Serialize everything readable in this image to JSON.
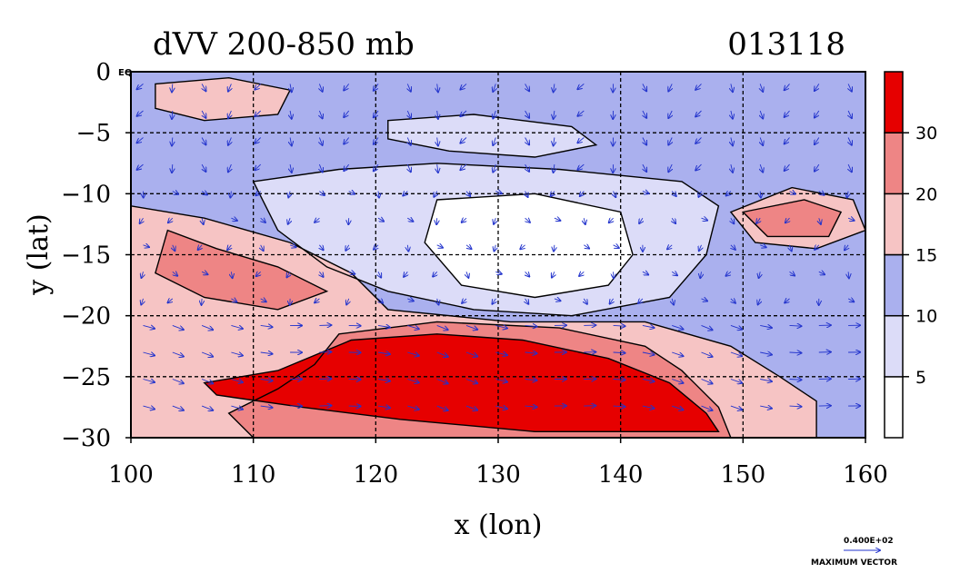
{
  "chart_data": {
    "type": "heatmap",
    "title": "dVV 200-850 mb",
    "date_label": "013118",
    "xlabel": "x (lon)",
    "ylabel": "y (lat)",
    "xlim": [
      100,
      160
    ],
    "ylim": [
      -30,
      0
    ],
    "x_ticks": [
      100,
      110,
      120,
      130,
      140,
      150,
      160
    ],
    "y_ticks": [
      0,
      -5,
      -10,
      -15,
      -20,
      -25,
      -30
    ],
    "y_tick_labels": [
      "0",
      "−5",
      "−10",
      "−15",
      "−20",
      "−25",
      "−30"
    ],
    "eq_label": "EQ",
    "grid": true,
    "colorbar": {
      "levels": [
        0,
        5,
        10,
        15,
        20,
        30,
        35
      ],
      "tick_labels": [
        "5",
        "10",
        "15",
        "20",
        "30"
      ],
      "colors": [
        "#ffffff",
        "#dcdcf8",
        "#aab0ee",
        "#f6c4c4",
        "#ee8585",
        "#e60000"
      ]
    },
    "field_regions": [
      {
        "level": 2,
        "lonlat": [
          [
            100,
            0
          ],
          [
            160,
            0
          ],
          [
            160,
            -30
          ],
          [
            100,
            -30
          ]
        ]
      },
      {
        "level": 1,
        "lonlat": [
          [
            110,
            -9
          ],
          [
            117,
            -8
          ],
          [
            125,
            -7.5
          ],
          [
            135,
            -8
          ],
          [
            145,
            -9
          ],
          [
            148,
            -11
          ],
          [
            147,
            -15
          ],
          [
            144,
            -18.5
          ],
          [
            136,
            -20
          ],
          [
            128,
            -19.5
          ],
          [
            121,
            -18
          ],
          [
            116,
            -16
          ],
          [
            112,
            -13
          ]
        ]
      },
      {
        "level": 0,
        "lonlat": [
          [
            125,
            -10.5
          ],
          [
            133,
            -10
          ],
          [
            140,
            -11.5
          ],
          [
            141,
            -15
          ],
          [
            139,
            -17.5
          ],
          [
            133,
            -18.5
          ],
          [
            127,
            -17.5
          ],
          [
            124,
            -14
          ]
        ]
      },
      {
        "level": 1,
        "lonlat": [
          [
            121,
            -4
          ],
          [
            128,
            -3.5
          ],
          [
            136,
            -4.5
          ],
          [
            138,
            -6
          ],
          [
            133,
            -7
          ],
          [
            126,
            -6.5
          ],
          [
            121,
            -5.5
          ]
        ]
      },
      {
        "level": 3,
        "lonlat": [
          [
            100,
            -11
          ],
          [
            106,
            -12
          ],
          [
            113,
            -14
          ],
          [
            118,
            -16.5
          ],
          [
            121,
            -19.5
          ],
          [
            131,
            -20.5
          ],
          [
            142,
            -20.5
          ],
          [
            149,
            -22.5
          ],
          [
            153,
            -25
          ],
          [
            156,
            -27
          ],
          [
            156,
            -30
          ],
          [
            100,
            -30
          ]
        ]
      },
      {
        "level": 3,
        "lonlat": [
          [
            102,
            -1
          ],
          [
            108,
            -0.5
          ],
          [
            113,
            -1.5
          ],
          [
            112,
            -3.5
          ],
          [
            106,
            -4
          ],
          [
            102,
            -3
          ]
        ]
      },
      {
        "level": 3,
        "lonlat": [
          [
            149,
            -11.5
          ],
          [
            154,
            -9.5
          ],
          [
            159,
            -10.5
          ],
          [
            160,
            -13
          ],
          [
            156,
            -14.5
          ],
          [
            151,
            -14
          ]
        ]
      },
      {
        "level": 4,
        "lonlat": [
          [
            103,
            -13
          ],
          [
            107,
            -14.5
          ],
          [
            112,
            -16
          ],
          [
            116,
            -18
          ],
          [
            112,
            -19.5
          ],
          [
            106,
            -18.5
          ],
          [
            102,
            -16.5
          ]
        ]
      },
      {
        "level": 4,
        "lonlat": [
          [
            117,
            -21.5
          ],
          [
            125,
            -20.5
          ],
          [
            135,
            -21
          ],
          [
            142,
            -22.5
          ],
          [
            145,
            -24.5
          ],
          [
            148,
            -27.5
          ],
          [
            149,
            -30
          ],
          [
            110,
            -30
          ],
          [
            108,
            -28
          ],
          [
            112,
            -26
          ],
          [
            115,
            -24
          ]
        ]
      },
      {
        "level": 4,
        "lonlat": [
          [
            150,
            -11.5
          ],
          [
            155,
            -10.5
          ],
          [
            158,
            -11.5
          ],
          [
            157,
            -13.5
          ],
          [
            152,
            -13.5
          ]
        ]
      },
      {
        "level": 5,
        "lonlat": [
          [
            106,
            -25.5
          ],
          [
            112,
            -24.5
          ],
          [
            118,
            -22
          ],
          [
            125,
            -21.5
          ],
          [
            132,
            -22
          ],
          [
            139,
            -23.5
          ],
          [
            144,
            -25.5
          ],
          [
            147,
            -28
          ],
          [
            148,
            -29.5
          ],
          [
            133,
            -29.5
          ],
          [
            122,
            -28.5
          ],
          [
            114,
            -27.5
          ],
          [
            107,
            -26.5
          ]
        ]
      }
    ]
  }
}
